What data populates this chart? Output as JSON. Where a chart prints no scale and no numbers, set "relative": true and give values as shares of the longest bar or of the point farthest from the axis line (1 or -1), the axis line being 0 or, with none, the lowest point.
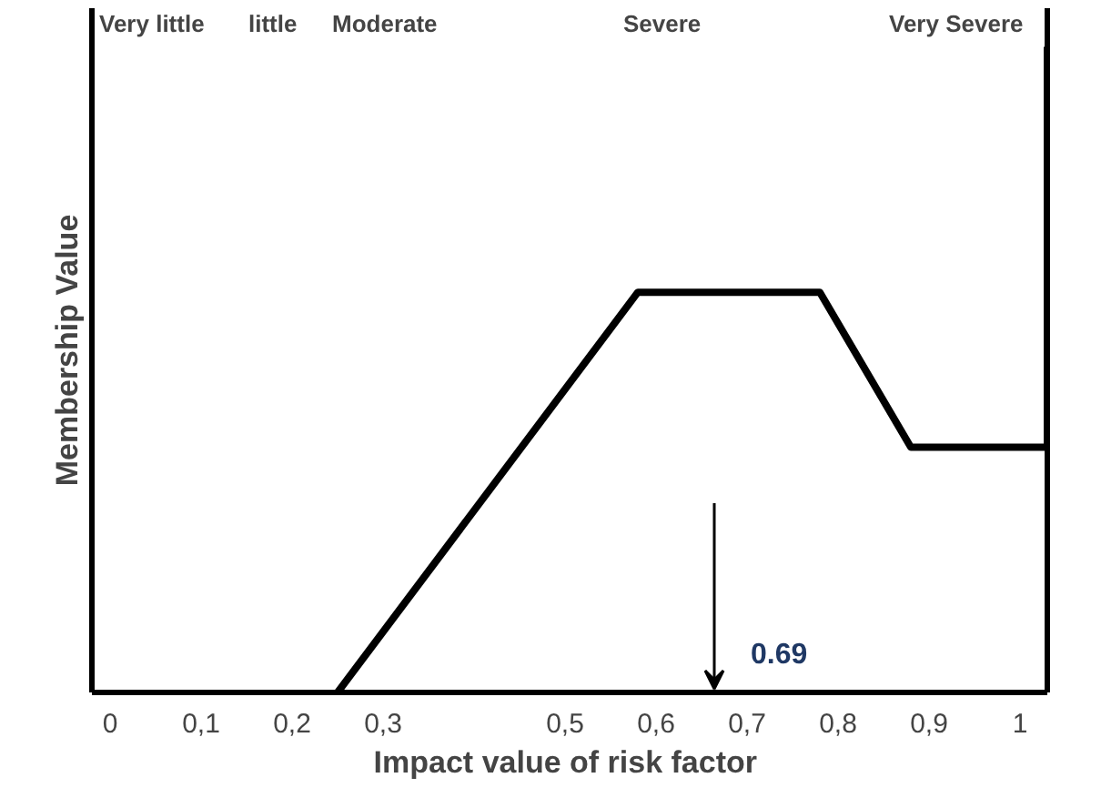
{
  "chart_data": {
    "type": "line",
    "relative": true,
    "xlabel": "Impact  value of risk factor",
    "ylabel": "Membership Value",
    "x": [
      0.25,
      0.58,
      0.78,
      0.88,
      1.03,
      1.03
    ],
    "series": [
      {
        "color": "#000000",
        "values": [
          0,
          0.62,
          0.62,
          0.38,
          0.38,
          1
        ]
      }
    ],
    "xlim": [
      -0.02,
      1.03
    ],
    "xticks": [
      0,
      {
        "value": 0.1,
        "label": "0,1"
      },
      {
        "value": 0.2,
        "label": "0,2"
      },
      {
        "value": 0.3,
        "label": "0,3"
      },
      {
        "value": 0.5,
        "label": "0,5"
      },
      {
        "value": 0.6,
        "label": "0,6"
      },
      {
        "value": 0.7,
        "label": "0,7"
      },
      {
        "value": 0.8,
        "label": "0,8"
      },
      {
        "value": 0.9,
        "label": "0,9"
      },
      1
    ],
    "tick_labels": "x",
    "grid": false,
    "marker": "none",
    "line_style": "solid",
    "annotations": [
      "Very little",
      "little",
      "Moderate",
      "Severe",
      "Very Severe",
      "0.69"
    ]
  }
}
